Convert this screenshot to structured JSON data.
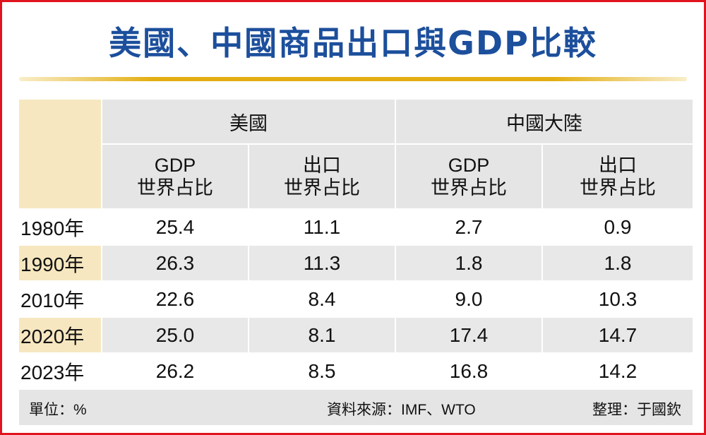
{
  "title": "美國、中國商品出口與GDP比較",
  "chart_data": {
    "type": "table",
    "title": "美國、中國商品出口與GDP比較",
    "groups": [
      {
        "name": "美國",
        "columns": [
          "GDP 世界占比",
          "出口 世界占比"
        ]
      },
      {
        "name": "中國大陸",
        "columns": [
          "GDP 世界占比",
          "出口 世界占比"
        ]
      }
    ],
    "headers": {
      "group_us": "美國",
      "group_cn": "中國大陸",
      "gdp_line1": "GDP",
      "gdp_line2": "世界占比",
      "exp_line1": "出口",
      "exp_line2": "世界占比"
    },
    "rows": [
      {
        "year": "1980年",
        "us_gdp": "25.4",
        "us_exp": "11.1",
        "cn_gdp": "2.7",
        "cn_exp": "0.9"
      },
      {
        "year": "1990年",
        "us_gdp": "26.3",
        "us_exp": "11.3",
        "cn_gdp": "1.8",
        "cn_exp": "1.8"
      },
      {
        "year": "2010年",
        "us_gdp": "22.6",
        "us_exp": "8.4",
        "cn_gdp": "9.0",
        "cn_exp": "10.3"
      },
      {
        "year": "2020年",
        "us_gdp": "25.0",
        "us_exp": "8.1",
        "cn_gdp": "17.4",
        "cn_exp": "14.7"
      },
      {
        "year": "2023年",
        "us_gdp": "26.2",
        "us_exp": "8.5",
        "cn_gdp": "16.8",
        "cn_exp": "14.2"
      }
    ],
    "unit": "單位：%",
    "source": "資料來源：IMF、WTO",
    "compiler": "整理：于國欽"
  },
  "colors": {
    "title": "#1c4f9c",
    "border": "#e0141e",
    "accent_bar": "#e3ae12",
    "header_bg": "#e5e5e5",
    "year_bg": "#f6e7c0"
  }
}
